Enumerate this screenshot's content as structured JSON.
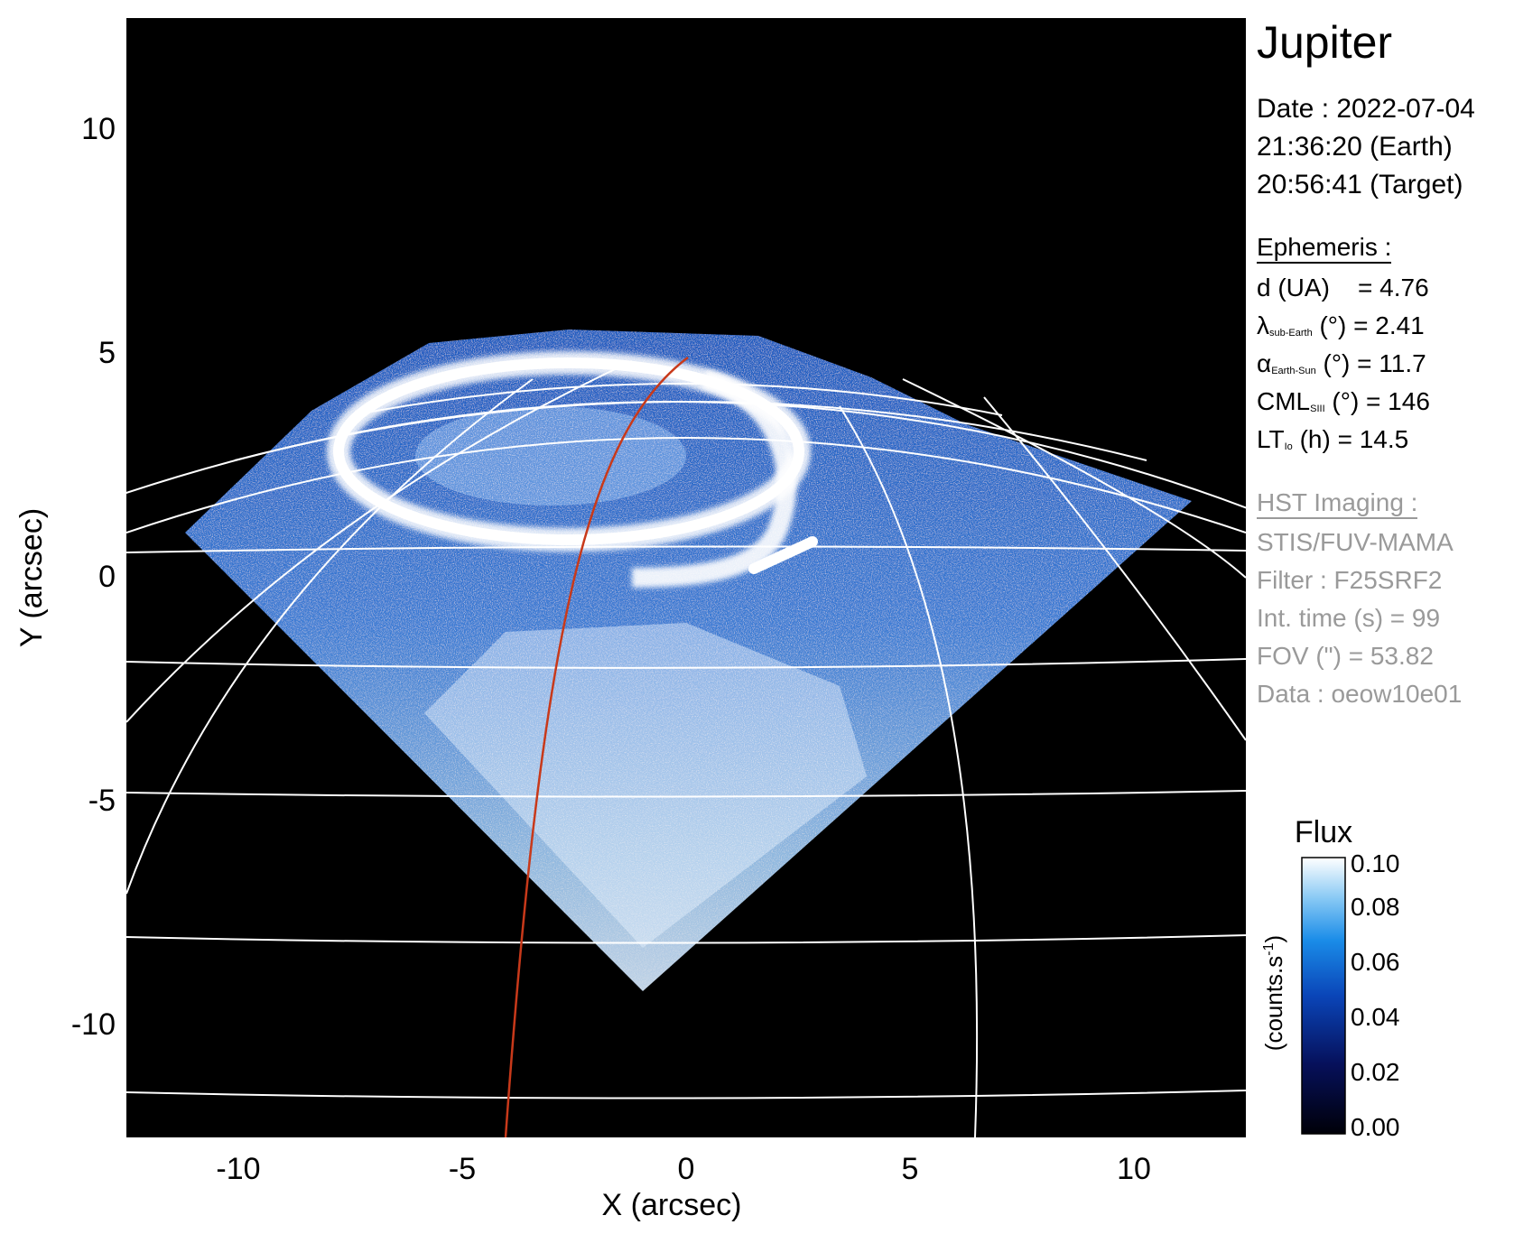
{
  "title": "Jupiter",
  "date": {
    "date_line": "Date : 2022-07-04",
    "earth_time": "21:36:20 (Earth)",
    "target_time": "20:56:41 (Target)"
  },
  "ephemeris": {
    "heading": "Ephemeris :",
    "d_label": "d (UA)",
    "d_value": "= 4.76",
    "lambda_symbol": "λ",
    "lambda_sub": "sub-Earth",
    "lambda_value": "(°) = 2.41",
    "alpha_symbol": "α",
    "alpha_sub": "Earth-Sun",
    "alpha_value": "(°) = 11.7",
    "cml_symbol": "CML",
    "cml_sub": "SIII",
    "cml_value": "(°) = 146",
    "lt_symbol": "LT",
    "lt_sub": "Io",
    "lt_value": "(h) = 14.5"
  },
  "hst": {
    "heading": "HST Imaging :",
    "instrument": "STIS/FUV-MAMA",
    "filter": "Filter : F25SRF2",
    "int_time": "Int. time (s) = 99",
    "fov": "FOV (\") = 53.82",
    "data": "Data : oeow10e01"
  },
  "axes": {
    "xlabel": "X (arcsec)",
    "ylabel": "Y (arcsec)",
    "xlim": [
      -12.5,
      12.5
    ],
    "ylim": [
      -12.5,
      12.5
    ],
    "xticks": [
      -10,
      -5,
      0,
      5,
      10
    ],
    "yticks": [
      -10,
      -5,
      0,
      5,
      10
    ]
  },
  "colorbar": {
    "title": "Flux",
    "unit_label": "(counts.s",
    "unit_exp": "-1",
    "unit_close": ")",
    "range": [
      0.0,
      0.1
    ],
    "ticks": [
      "0.00",
      "0.02",
      "0.04",
      "0.06",
      "0.08",
      "0.10"
    ]
  },
  "colors": {
    "background": "#000000",
    "grid": "#ffffff",
    "meridian": "#c8391a",
    "colormap_low": "#000008",
    "colormap_mid": "#1a6fe0",
    "colormap_high": "#ffffff",
    "hst_text": "#9a9a9a"
  }
}
